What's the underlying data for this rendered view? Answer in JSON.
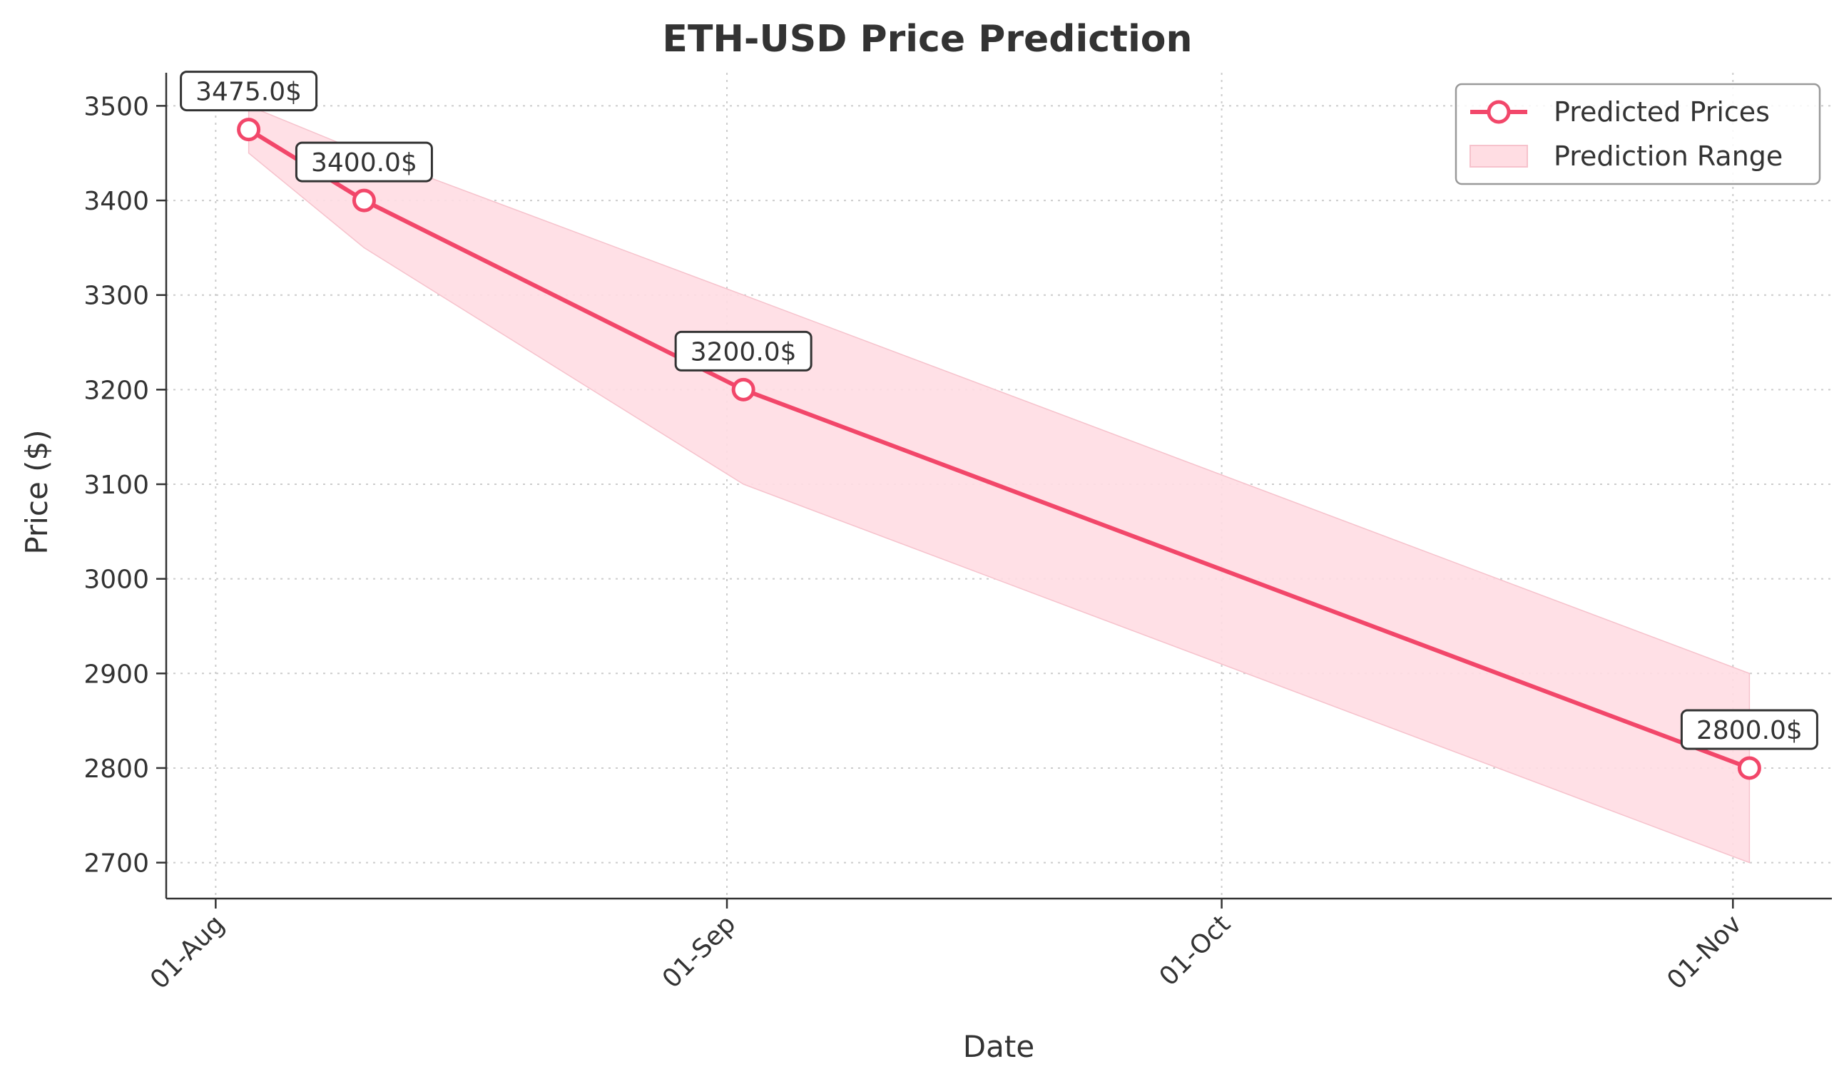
{
  "chart_data": {
    "type": "line",
    "title": "ETH-USD Price Prediction",
    "xlabel": "Date",
    "ylabel": "Price ($)",
    "x_ticks": [
      {
        "date": "2024-08-01",
        "label": "01-Aug"
      },
      {
        "date": "2024-09-01",
        "label": "01-Sep"
      },
      {
        "date": "2024-10-01",
        "label": "01-Oct"
      },
      {
        "date": "2024-11-01",
        "label": "01-Nov"
      }
    ],
    "y_ticks": [
      2700,
      2800,
      2900,
      3000,
      3100,
      3200,
      3300,
      3400,
      3500
    ],
    "xlim": [
      "2024-07-29",
      "2024-11-07"
    ],
    "ylim": [
      2662,
      3535
    ],
    "grid": true,
    "legend_position": "top-right",
    "series": [
      {
        "name": "Predicted Prices",
        "color": "#f2476a",
        "marker": "circle-hollow",
        "points": [
          {
            "x": "2024-08-03",
            "y": 3475,
            "label": "3475.0$"
          },
          {
            "x": "2024-08-10",
            "y": 3400,
            "label": "3400.0$"
          },
          {
            "x": "2024-09-02",
            "y": 3200,
            "label": "3200.0$"
          },
          {
            "x": "2024-11-02",
            "y": 2800,
            "label": "2800.0$"
          }
        ]
      }
    ],
    "range": {
      "name": "Prediction Range",
      "color": "#ffdde3",
      "points": [
        {
          "x": "2024-08-03",
          "low": 3450,
          "high": 3500
        },
        {
          "x": "2024-08-10",
          "low": 3350,
          "high": 3450
        },
        {
          "x": "2024-09-02",
          "low": 3100,
          "high": 3300
        },
        {
          "x": "2024-11-02",
          "low": 2700,
          "high": 2900
        }
      ]
    }
  }
}
